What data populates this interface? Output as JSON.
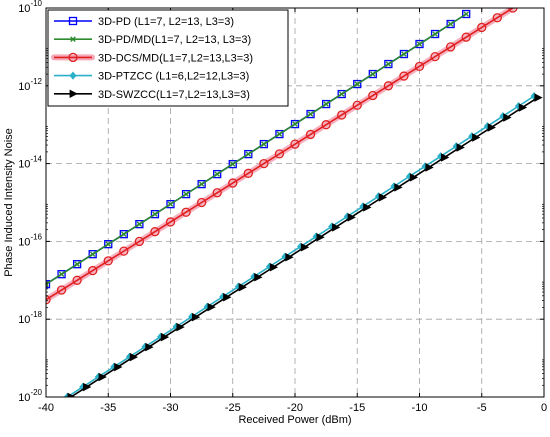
{
  "chart_data": {
    "type": "line",
    "title": "",
    "xlabel": "Received Power (dBm)",
    "ylabel": "Phase Induced Intensity Noise",
    "xlim": [
      -40,
      0
    ],
    "ylim_exp": [
      -20,
      -10
    ],
    "y_scale": "log",
    "grid": true,
    "legend_position": "top-left",
    "x_ticks": [
      -40,
      -35,
      -30,
      -25,
      -20,
      -15,
      -10,
      -5,
      0
    ],
    "x_tick_labels": [
      "-40",
      "-35",
      "-30",
      "-25",
      "-20",
      "-15",
      "-10",
      "-5",
      "0"
    ],
    "y_ticks_exp": [
      -20,
      -18,
      -16,
      -14,
      -12,
      -10
    ],
    "y_tick_base": "10",
    "series": [
      {
        "name": "3D-PD (L1=7, L2=13, L3=3)",
        "color": "#0000ff",
        "marker": "square",
        "x_range": [
          -40,
          -5.5
        ],
        "log10_y_range": [
          -17.1,
          -10.0
        ]
      },
      {
        "name": "3D-PD/MD(L1=7, L2=13, L3=3)",
        "color": "#2e8b2e",
        "marker": "x",
        "x_range": [
          -40,
          -5.5
        ],
        "log10_y_range": [
          -17.1,
          -10.0
        ]
      },
      {
        "name": "3D-DCS/MD(L1=7,L2=13,L3=3)",
        "color": "#e02020",
        "marker": "circle",
        "x_range": [
          -40,
          -2.5
        ],
        "log10_y_range": [
          -17.5,
          -10.0
        ]
      },
      {
        "name": "3D-PTZCC (L1=6,L2=12,L3=3)",
        "color": "#2ab0c8",
        "marker": "diamond",
        "x_range": [
          -38.3,
          0
        ],
        "log10_y_range": [
          -20.0,
          -12.1
        ]
      },
      {
        "name": "3D-SWZCC(L1=7,L2=13,L3=3)",
        "color": "#000000",
        "marker": "triangle-right",
        "x_range": [
          -38.0,
          0
        ],
        "log10_y_range": [
          -20.0,
          -12.2
        ]
      }
    ]
  }
}
